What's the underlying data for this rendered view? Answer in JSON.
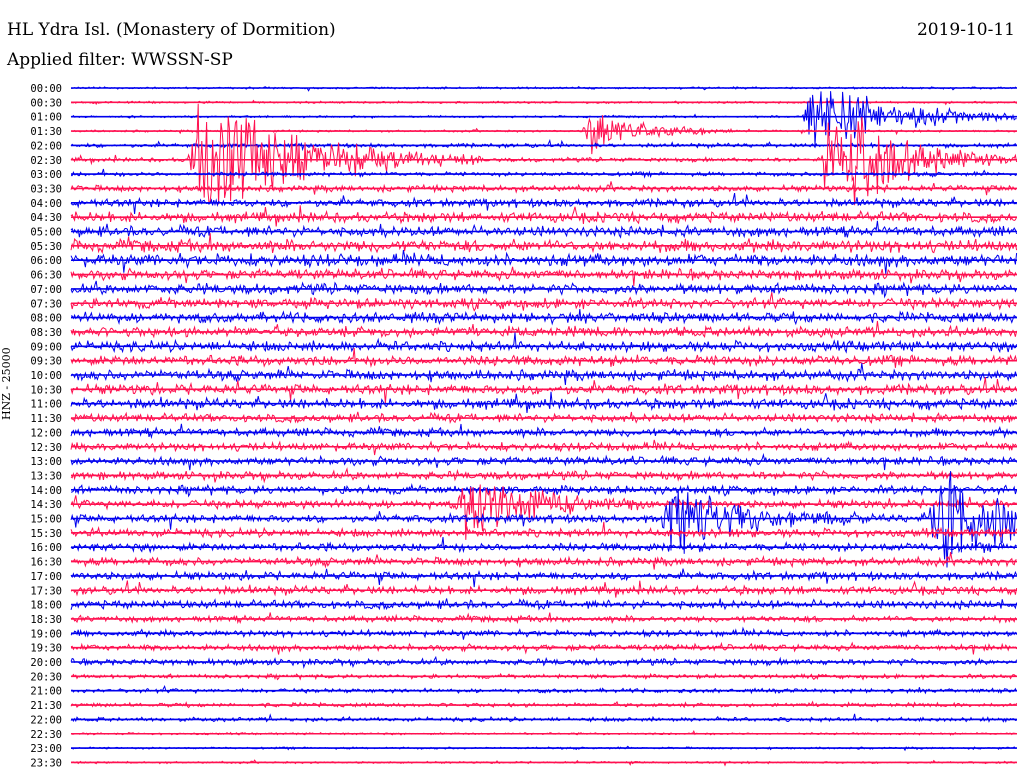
{
  "header": {
    "title": "HL Ydra Isl. (Monastery of Dormition)",
    "date": "2019-10-11",
    "filter": "Applied filter: WWSSN-SP"
  },
  "colors": {
    "blue": "#0000ee",
    "red": "#ff1050"
  },
  "chart_data": {
    "type": "line",
    "title": "HL Ydra Isl. (Monastery of Dormition)",
    "ylabel": "HNZ - 25000",
    "row_labels": [
      "00:00",
      "00:30",
      "01:00",
      "01:30",
      "02:00",
      "02:30",
      "03:00",
      "03:30",
      "04:00",
      "04:30",
      "05:00",
      "05:30",
      "06:00",
      "06:30",
      "07:00",
      "07:30",
      "08:00",
      "08:30",
      "09:00",
      "09:30",
      "10:00",
      "10:30",
      "11:00",
      "11:30",
      "12:00",
      "12:30",
      "13:00",
      "13:30",
      "14:00",
      "14:30",
      "15:00",
      "15:30",
      "16:00",
      "16:30",
      "17:00",
      "17:30",
      "18:00",
      "18:30",
      "19:00",
      "19:30",
      "20:00",
      "20:30",
      "21:00",
      "21:30",
      "22:00",
      "22:30",
      "23:00",
      "23:30"
    ],
    "row_colors": [
      "blue",
      "red"
    ],
    "noise_by_row": [
      1,
      1,
      1,
      1,
      2,
      2,
      2,
      3,
      4,
      5,
      5,
      6,
      6,
      5,
      5,
      5,
      5,
      5,
      5,
      5,
      5,
      5,
      5,
      4,
      4,
      4,
      4,
      4,
      4,
      4,
      4,
      4,
      4,
      4,
      4,
      4,
      4,
      3,
      3,
      3,
      3,
      2,
      2,
      2,
      2,
      1,
      1,
      1
    ],
    "events": [
      {
        "row": 5,
        "minute": 4.0,
        "amplitude": 80,
        "duration": 3.0
      },
      {
        "row": 5,
        "minute": 25.0,
        "amplitude": 40,
        "duration": 1.5
      },
      {
        "row": 2,
        "minute": 23.5,
        "amplitude": 45,
        "duration": 2.5
      },
      {
        "row": 5,
        "minute": 24.0,
        "amplitude": 50,
        "duration": 2.0
      },
      {
        "row": 29,
        "minute": 12.5,
        "amplitude": 40,
        "duration": 2.0
      },
      {
        "row": 30,
        "minute": 19.0,
        "amplitude": 45,
        "duration": 2.0
      },
      {
        "row": 30,
        "minute": 27.5,
        "amplitude": 60,
        "duration": 2.5
      },
      {
        "row": 3,
        "minute": 16.5,
        "amplitude": 25,
        "duration": 1.5
      }
    ]
  }
}
